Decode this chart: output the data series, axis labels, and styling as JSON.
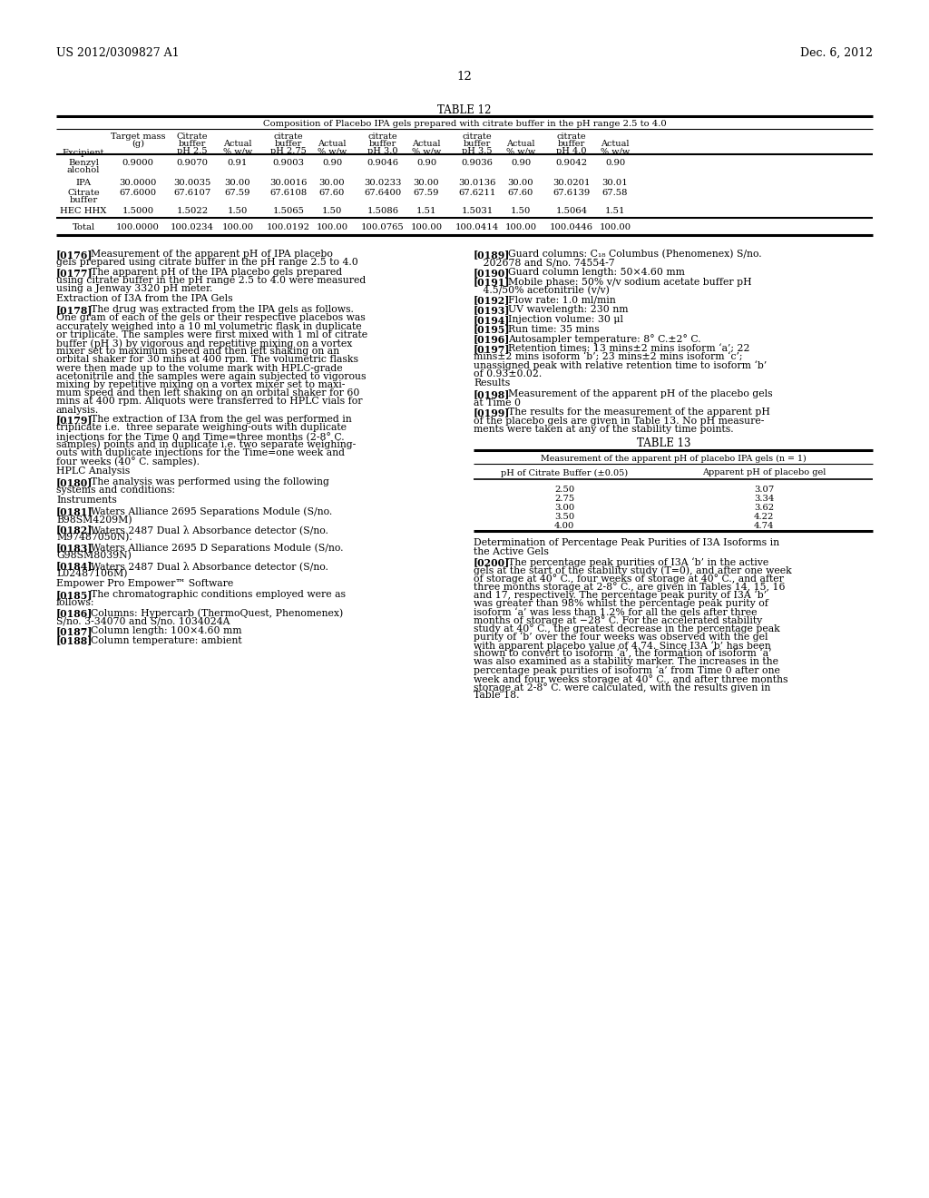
{
  "header_left": "US 2012/0309827 A1",
  "header_right": "Dec. 6, 2012",
  "page_number": "12",
  "table12_title": "TABLE 12",
  "table12_subtitle": "Composition of Placebo IPA gels prepared with citrate buffer in the pH range 2.5 to 4.0",
  "table13_title": "TABLE 13",
  "table13_subtitle": "Measurement of the apparent pH of placebo IPA gels (n = 1)",
  "table13_col1": "pH of Citrate Buffer (±0.05)",
  "table13_col2": "Apparent pH of placebo gel",
  "table13_rows": [
    [
      "2.50",
      "3.07"
    ],
    [
      "2.75",
      "3.34"
    ],
    [
      "3.00",
      "3.62"
    ],
    [
      "3.50",
      "4.22"
    ],
    [
      "4.00",
      "4.74"
    ]
  ],
  "table12_rows": [
    [
      "Benzyl",
      "alcohol",
      "0.9000",
      "0.9070",
      "0.91",
      "0.9003",
      "0.90",
      "0.9046",
      "0.90",
      "0.9036",
      "0.90",
      "0.9042",
      "0.90"
    ],
    [
      "IPA",
      "",
      "30.0000",
      "30.0035",
      "30.00",
      "30.0016",
      "30.00",
      "30.0233",
      "30.00",
      "30.0136",
      "30.00",
      "30.0201",
      "30.01"
    ],
    [
      "Citrate",
      "buffer",
      "67.6000",
      "67.6107",
      "67.59",
      "67.6108",
      "67.60",
      "67.6400",
      "67.59",
      "67.6211",
      "67.60",
      "67.6139",
      "67.58"
    ],
    [
      "HEC HHX",
      "",
      "1.5000",
      "1.5022",
      "1.50",
      "1.5065",
      "1.50",
      "1.5086",
      "1.51",
      "1.5031",
      "1.50",
      "1.5064",
      "1.51"
    ]
  ],
  "table12_total": [
    "Total",
    "100.0000",
    "100.0234",
    "100.00",
    "100.0192",
    "100.00",
    "100.0765",
    "100.00",
    "100.0414",
    "100.00",
    "100.0446",
    "100.00"
  ],
  "left_col": [
    {
      "type": "para",
      "tag": "[0176]",
      "lines": [
        "Measurement of the apparent pH of IPA placebo",
        "gels prepared using citrate buffer in the pH range 2.5 to 4.0"
      ]
    },
    {
      "type": "para",
      "tag": "[0177]",
      "lines": [
        "The apparent pH of the IPA placebo gels prepared",
        "using citrate buffer in the pH range 2.5 to 4.0 were measured",
        "using a Jenway 3320 pH meter."
      ]
    },
    {
      "type": "heading",
      "text": "Extraction of I3A from the IPA Gels"
    },
    {
      "type": "para",
      "tag": "[0178]",
      "lines": [
        "The drug was extracted from the IPA gels as follows.",
        "One gram of each of the gels or their respective placebos was",
        "accurately weighed into a 10 ml volumetric flask in duplicate",
        "or triplicate. The samples were first mixed with 1 ml of citrate",
        "buffer (pH 3) by vigorous and repetitive mixing on a vortex",
        "mixer set to maximum speed and then left shaking on an",
        "orbital shaker for 30 mins at 400 rpm. The volumetric flasks",
        "were then made up to the volume mark with HPLC-grade",
        "acetonitrile and the samples were again subjected to vigorous",
        "mixing by repetitive mixing on a vortex mixer set to maxi-",
        "mum speed and then left shaking on an orbital shaker for 60",
        "mins at 400 rpm. Aliquots were transferred to HPLC vials for",
        "analysis."
      ]
    },
    {
      "type": "para",
      "tag": "[0179]",
      "lines": [
        "The extraction of I3A from the gel was performed in",
        "triplicate i.e.  three separate weighing-outs with duplicate",
        "injections for the Time 0 and Time=three months (2-8° C.",
        "samples) points and in duplicate i.e. two separate weighing-",
        "outs with duplicate injections for the Time=one week and",
        "four weeks (40° C. samples)."
      ]
    },
    {
      "type": "heading",
      "text": "HPLC Analysis"
    },
    {
      "type": "para",
      "tag": "[0180]",
      "lines": [
        "The analysis was performed using the following",
        "systems and conditions:"
      ]
    },
    {
      "type": "heading",
      "text": "Instruments"
    },
    {
      "type": "para",
      "tag": "[0181]",
      "lines": [
        "Waters Alliance 2695 Separations Module (S/no.",
        "B98SM4209M)"
      ]
    },
    {
      "type": "para",
      "tag": "[0182]",
      "lines": [
        "Waters 2487 Dual λ Absorbance detector (S/no.",
        "M97487050N)."
      ]
    },
    {
      "type": "para",
      "tag": "[0183]",
      "lines": [
        "Waters Alliance 2695 D Separations Module (S/no.",
        "G98SM8039N)"
      ]
    },
    {
      "type": "para",
      "tag": "[0184]",
      "lines": [
        "Waters 2487 Dual λ Absorbance detector (S/no.",
        "L02487106M)"
      ]
    },
    {
      "type": "heading",
      "text": "Empower Pro Empower™ Software"
    },
    {
      "type": "para",
      "tag": "[0185]",
      "lines": [
        "The chromatographic conditions employed were as",
        "follows:"
      ]
    },
    {
      "type": "para",
      "tag": "[0186]",
      "lines": [
        "Columns: Hypercarb (ThermoQuest, Phenomenex)",
        "S/no. 3-34070 and S/no. 1034024A"
      ]
    },
    {
      "type": "para",
      "tag": "[0187]",
      "lines": [
        "Column length: 100×4.60 mm"
      ]
    },
    {
      "type": "para",
      "tag": "[0188]",
      "lines": [
        "Column temperature: ambient"
      ]
    }
  ],
  "right_col": [
    {
      "type": "para",
      "tag": "[0189]",
      "lines": [
        "Guard columns: C₁₈ Columbus (Phenomenex) S/no.",
        "   202678 and S/no. 74554-7"
      ]
    },
    {
      "type": "para",
      "tag": "[0190]",
      "lines": [
        "Guard column length: 50×4.60 mm"
      ]
    },
    {
      "type": "para",
      "tag": "[0191]",
      "lines": [
        "Mobile phase: 50% v/v sodium acetate buffer pH",
        "   4.5/50% acetonitrile (v/v)"
      ]
    },
    {
      "type": "para",
      "tag": "[0192]",
      "lines": [
        "Flow rate: 1.0 ml/min"
      ]
    },
    {
      "type": "para",
      "tag": "[0193]",
      "lines": [
        "UV wavelength: 230 nm"
      ]
    },
    {
      "type": "para",
      "tag": "[0194]",
      "lines": [
        "Injection volume: 30 μl"
      ]
    },
    {
      "type": "para",
      "tag": "[0195]",
      "lines": [
        "Run time: 35 mins"
      ]
    },
    {
      "type": "para",
      "tag": "[0196]",
      "lines": [
        "Autosampler temperature: 8° C.±2° C."
      ]
    },
    {
      "type": "para",
      "tag": "[0197]",
      "lines": [
        "Retention times: 13 mins±2 mins isoform ‘a’; 22",
        "mins±2 mins isoform ‘b’; 23 mins±2 mins isoform ‘c’;",
        "unassigned peak with relative retention time to isoform ‘b’",
        "of 0.93±0.02."
      ]
    },
    {
      "type": "heading",
      "text": "Results"
    },
    {
      "type": "para",
      "tag": "[0198]",
      "lines": [
        "Measurement of the apparent pH of the placebo gels",
        "at Time 0"
      ]
    },
    {
      "type": "para",
      "tag": "[0199]",
      "lines": [
        "The results for the measurement of the apparent pH",
        "of the placebo gels are given in Table 13. No pH measure-",
        "ments were taken at any of the stability time points."
      ]
    },
    {
      "type": "table13"
    },
    {
      "type": "heading2",
      "text": "Determination of Percentage Peak Purities of I3A Isoforms in\nthe Active Gels"
    },
    {
      "type": "para",
      "tag": "[0200]",
      "lines": [
        "The percentage peak purities of I3A ‘b’ in the active",
        "gels at the start of the stability study (T=0), and after one week",
        "of storage at 40° C., four weeks of storage at 40° C., and after",
        "three months storage at 2-8° C., are given in Tables 14, 15, 16",
        "and 17, respectively. The percentage peak purity of I3A ‘b’",
        "was greater than 98% whilst the percentage peak purity of",
        "isoform ‘a’ was less than 1.2% for all the gels after three",
        "months of storage at −28° C. For the accelerated stability",
        "study at 40° C., the greatest decrease in the percentage peak",
        "purity of ‘b’ over the four weeks was observed with the gel",
        "with apparent placebo value of 4.74. Since I3A ‘b’ has been",
        "shown to convert to isoform ‘a’, the formation of isoform ‘a’",
        "was also examined as a stability marker. The increases in the",
        "percentage peak purities of isoform ‘a’ from Time 0 after one",
        "week and four weeks storage at 40° C., and after three months",
        "storage at 2-8° C. were calculated, with the results given in",
        "Table 18."
      ]
    }
  ]
}
